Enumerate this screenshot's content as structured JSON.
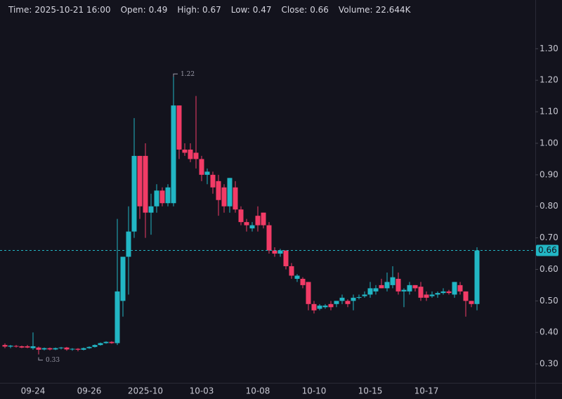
{
  "chart_data": {
    "type": "candlestick",
    "header": [
      {
        "label": "Time:",
        "value": "2025-10-21 16:00"
      },
      {
        "label": "Open:",
        "value": 0.49
      },
      {
        "label": "High:",
        "value": 0.67
      },
      {
        "label": "Low:",
        "value": 0.47
      },
      {
        "label": "Close:",
        "value": 0.66
      },
      {
        "label": "Volume:",
        "value": "22.644K"
      }
    ],
    "categories": [
      null,
      null,
      null,
      null,
      null,
      "09-24",
      null,
      null,
      null,
      null,
      null,
      null,
      null,
      null,
      null,
      "09-26",
      null,
      null,
      null,
      null,
      null,
      null,
      null,
      null,
      null,
      "2025-10",
      null,
      null,
      null,
      null,
      null,
      null,
      null,
      null,
      null,
      "10-03",
      null,
      null,
      null,
      null,
      null,
      null,
      null,
      null,
      null,
      "10-08",
      null,
      null,
      null,
      null,
      null,
      null,
      null,
      null,
      null,
      "10-10",
      null,
      null,
      null,
      null,
      null,
      null,
      null,
      null,
      null,
      "10-15",
      null,
      null,
      null,
      null,
      null,
      null,
      null,
      null,
      null,
      "10-17",
      null,
      null,
      null,
      null,
      null,
      null,
      null,
      null,
      null
    ],
    "open": [
      0.36,
      0.355,
      0.357,
      0.356,
      0.356,
      0.35,
      0.352,
      0.346,
      0.35,
      0.346,
      0.35,
      0.352,
      0.346,
      0.348,
      0.345,
      0.35,
      0.354,
      0.36,
      0.366,
      0.37,
      0.366,
      0.5,
      0.64,
      0.72,
      0.96,
      0.96,
      0.78,
      0.8,
      0.85,
      0.81,
      0.81,
      1.12,
      0.98,
      0.98,
      0.97,
      0.95,
      0.9,
      0.9,
      0.88,
      0.86,
      0.8,
      0.86,
      0.79,
      0.75,
      0.73,
      0.77,
      0.78,
      0.74,
      0.66,
      0.65,
      0.66,
      0.61,
      0.57,
      0.57,
      0.56,
      0.49,
      0.475,
      0.48,
      0.49,
      0.49,
      0.5,
      0.5,
      0.5,
      0.51,
      0.515,
      0.52,
      0.53,
      0.55,
      0.54,
      0.55,
      0.57,
      0.53,
      0.53,
      0.55,
      0.545,
      0.52,
      0.515,
      0.52,
      0.525,
      0.53,
      0.52,
      0.55,
      0.53,
      0.5,
      0.49
    ],
    "high": [
      0.365,
      0.36,
      0.36,
      0.358,
      0.36,
      0.4,
      0.355,
      0.352,
      0.352,
      0.352,
      0.354,
      0.354,
      0.35,
      0.35,
      0.352,
      0.356,
      0.362,
      0.368,
      0.372,
      0.372,
      0.76,
      0.64,
      0.8,
      1.08,
      0.96,
      1.0,
      0.84,
      0.87,
      0.86,
      0.87,
      1.22,
      1.12,
      1.0,
      1.0,
      1.15,
      0.96,
      0.92,
      0.91,
      0.9,
      0.87,
      0.89,
      0.88,
      0.8,
      0.76,
      0.75,
      0.8,
      0.78,
      0.75,
      0.67,
      0.665,
      0.66,
      0.62,
      0.585,
      0.575,
      0.56,
      0.5,
      0.49,
      0.49,
      0.5,
      0.5,
      0.52,
      0.505,
      0.52,
      0.52,
      0.53,
      0.56,
      0.55,
      0.57,
      0.59,
      0.61,
      0.59,
      0.54,
      0.56,
      0.55,
      0.56,
      0.53,
      0.53,
      0.53,
      0.54,
      0.535,
      0.56,
      0.56,
      0.53,
      0.5,
      0.67
    ],
    "low": [
      0.35,
      0.35,
      0.352,
      0.35,
      0.35,
      0.345,
      0.33,
      0.343,
      0.343,
      0.344,
      0.346,
      0.342,
      0.342,
      0.34,
      0.343,
      0.348,
      0.352,
      0.358,
      0.364,
      0.364,
      0.36,
      0.45,
      0.52,
      0.7,
      0.76,
      0.7,
      0.71,
      0.78,
      0.8,
      0.8,
      0.8,
      0.95,
      0.96,
      0.94,
      0.92,
      0.88,
      0.87,
      0.84,
      0.77,
      0.78,
      0.78,
      0.78,
      0.74,
      0.72,
      0.72,
      0.72,
      0.73,
      0.65,
      0.64,
      0.64,
      0.6,
      0.57,
      0.56,
      0.54,
      0.47,
      0.46,
      0.47,
      0.475,
      0.47,
      0.48,
      0.49,
      0.48,
      0.47,
      0.505,
      0.51,
      0.51,
      0.52,
      0.54,
      0.53,
      0.54,
      0.52,
      0.48,
      0.52,
      0.53,
      0.5,
      0.5,
      0.51,
      0.51,
      0.52,
      0.52,
      0.51,
      0.52,
      0.45,
      0.48,
      0.47
    ],
    "close": [
      0.355,
      0.358,
      0.356,
      0.352,
      0.352,
      0.356,
      0.345,
      0.35,
      0.346,
      0.35,
      0.352,
      0.346,
      0.348,
      0.345,
      0.35,
      0.354,
      0.36,
      0.366,
      0.37,
      0.366,
      0.53,
      0.64,
      0.72,
      0.96,
      0.8,
      0.78,
      0.8,
      0.85,
      0.81,
      0.86,
      1.12,
      0.98,
      0.97,
      0.95,
      0.95,
      0.9,
      0.91,
      0.86,
      0.82,
      0.8,
      0.89,
      0.79,
      0.75,
      0.74,
      0.74,
      0.74,
      0.74,
      0.66,
      0.65,
      0.66,
      0.61,
      0.58,
      0.58,
      0.55,
      0.49,
      0.47,
      0.485,
      0.485,
      0.48,
      0.5,
      0.51,
      0.49,
      0.51,
      0.512,
      0.52,
      0.54,
      0.54,
      0.54,
      0.56,
      0.575,
      0.53,
      0.535,
      0.55,
      0.54,
      0.51,
      0.51,
      0.52,
      0.525,
      0.53,
      0.525,
      0.56,
      0.53,
      0.5,
      0.49,
      0.66
    ],
    "up_color": "#22b6c4",
    "down_color": "#f23b66",
    "ylim": [
      0.24,
      1.41
    ],
    "yticks": [
      {
        "value": 0.3,
        "label": "0.30"
      },
      {
        "value": 0.4,
        "label": "0.40"
      },
      {
        "value": 0.5,
        "label": "0.50"
      },
      {
        "value": 0.6,
        "label": "0.60"
      },
      {
        "value": 0.7,
        "label": "0.70"
      },
      {
        "value": 0.8,
        "label": "0.80"
      },
      {
        "value": 0.9,
        "label": "0.90"
      },
      {
        "value": 1.0,
        "label": "1.00"
      },
      {
        "value": 1.1,
        "label": "1.10"
      },
      {
        "value": 1.2,
        "label": "1.20"
      },
      {
        "value": 1.3,
        "label": "1.30"
      }
    ],
    "max_annotation_index": 30,
    "min_annotation_index": 6
  }
}
